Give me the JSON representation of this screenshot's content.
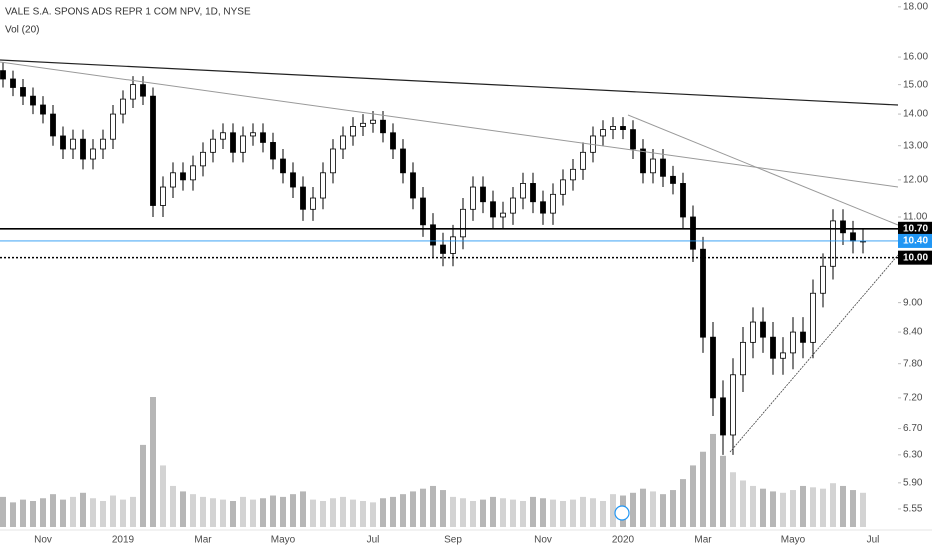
{
  "chart_data": {
    "type": "candlestick",
    "title": "VALE S.A. SPONS ADS REPR 1 COM NPV, 1D, NYSE",
    "indicator_label": "Vol (20)",
    "categories": [
      null,
      null,
      null,
      null,
      "Nov",
      null,
      null,
      null,
      null,
      null,
      null,
      null,
      "2019",
      null,
      null,
      null,
      null,
      null,
      null,
      null,
      "Mar",
      null,
      null,
      null,
      null,
      null,
      null,
      null,
      "Mayo",
      null,
      null,
      null,
      null,
      null,
      null,
      null,
      null,
      "Jul",
      null,
      null,
      null,
      null,
      null,
      null,
      null,
      "Sep",
      null,
      null,
      null,
      null,
      null,
      null,
      null,
      null,
      "Nov",
      null,
      null,
      null,
      null,
      null,
      null,
      null,
      "2020",
      null,
      null,
      null,
      null,
      null,
      null,
      null,
      "Mar",
      null,
      null,
      null,
      null,
      null,
      null,
      null,
      null,
      "Mayo",
      null,
      null,
      null,
      null,
      null,
      null,
      null,
      "Jul"
    ],
    "open": [
      15.5,
      15.2,
      14.9,
      14.6,
      14.3,
      14.0,
      13.3,
      12.9,
      13.2,
      12.6,
      12.9,
      13.2,
      14.0,
      14.5,
      15.0,
      14.6,
      11.3,
      11.8,
      12.2,
      12.0,
      12.4,
      12.8,
      13.2,
      13.4,
      12.8,
      13.3,
      13.4,
      13.1,
      12.6,
      12.2,
      11.8,
      11.2,
      11.5,
      12.2,
      12.9,
      13.3,
      13.6,
      13.7,
      13.8,
      13.4,
      12.9,
      12.2,
      11.5,
      10.8,
      10.3,
      10.1,
      10.5,
      11.2,
      11.8,
      11.4,
      11.0,
      11.1,
      11.5,
      11.9,
      11.4,
      11.1,
      11.6,
      12.0,
      12.3,
      12.8,
      13.3,
      13.5,
      13.6,
      13.5,
      12.9,
      12.2,
      12.6,
      12.1,
      11.9,
      11.0,
      10.2,
      8.3,
      7.2,
      6.6,
      7.6,
      8.2,
      8.6,
      8.3,
      7.9,
      8.0,
      8.4,
      8.2,
      9.2,
      9.8,
      10.9,
      10.6,
      10.4,
      null
    ],
    "high": [
      15.8,
      15.5,
      15.2,
      14.9,
      14.6,
      14.3,
      13.6,
      13.5,
      13.5,
      13.2,
      13.5,
      14.3,
      14.8,
      15.3,
      15.3,
      14.9,
      12.1,
      12.5,
      12.5,
      12.7,
      13.1,
      13.5,
      13.7,
      13.7,
      13.6,
      13.7,
      13.7,
      13.4,
      12.9,
      12.5,
      12.1,
      11.8,
      12.5,
      13.2,
      13.6,
      13.9,
      14.0,
      14.1,
      14.1,
      13.7,
      13.2,
      12.5,
      11.8,
      11.1,
      10.6,
      10.8,
      11.5,
      12.1,
      12.1,
      11.7,
      11.4,
      11.8,
      12.2,
      12.2,
      11.7,
      11.9,
      12.3,
      12.6,
      13.1,
      13.6,
      13.8,
      13.9,
      13.9,
      13.8,
      13.2,
      12.9,
      12.9,
      12.4,
      12.2,
      11.3,
      10.5,
      8.6,
      7.5,
      7.9,
      8.5,
      8.9,
      8.9,
      8.6,
      8.3,
      8.7,
      8.7,
      9.5,
      10.1,
      11.2,
      11.2,
      10.9,
      10.7,
      null
    ],
    "low": [
      14.9,
      14.6,
      14.3,
      14.0,
      13.7,
      13.0,
      12.6,
      12.6,
      12.3,
      12.3,
      12.6,
      12.9,
      13.7,
      14.2,
      14.3,
      11.0,
      11.0,
      11.5,
      11.7,
      11.7,
      12.1,
      12.5,
      12.9,
      12.5,
      12.5,
      13.0,
      12.8,
      12.3,
      11.9,
      11.5,
      10.9,
      10.9,
      11.2,
      11.9,
      12.6,
      13.0,
      13.3,
      13.4,
      13.1,
      12.6,
      11.9,
      11.2,
      10.5,
      10.0,
      9.8,
      9.8,
      10.2,
      10.9,
      11.1,
      10.7,
      10.7,
      10.8,
      11.2,
      11.1,
      10.8,
      10.8,
      11.3,
      11.7,
      12.0,
      12.5,
      13.0,
      13.2,
      13.2,
      12.6,
      11.9,
      11.9,
      11.8,
      11.6,
      10.7,
      9.9,
      8.0,
      6.9,
      6.3,
      6.3,
      7.3,
      7.9,
      8.0,
      7.6,
      7.6,
      7.7,
      7.9,
      7.9,
      8.9,
      9.5,
      10.3,
      10.1,
      10.1,
      null
    ],
    "close": [
      15.2,
      14.9,
      14.6,
      14.3,
      14.0,
      13.3,
      12.9,
      13.2,
      12.6,
      12.9,
      13.2,
      14.0,
      14.5,
      15.0,
      14.6,
      11.3,
      11.8,
      12.2,
      12.0,
      12.4,
      12.8,
      13.2,
      13.4,
      12.8,
      13.3,
      13.4,
      13.1,
      12.6,
      12.2,
      11.8,
      11.2,
      11.5,
      12.2,
      12.9,
      13.3,
      13.6,
      13.7,
      13.8,
      13.4,
      12.9,
      12.2,
      11.5,
      10.8,
      10.3,
      10.1,
      10.5,
      11.2,
      11.8,
      11.4,
      11.0,
      11.1,
      11.5,
      11.9,
      11.4,
      11.1,
      11.6,
      12.0,
      12.3,
      12.8,
      13.3,
      13.5,
      13.6,
      13.5,
      12.9,
      12.2,
      12.6,
      12.1,
      11.9,
      11.0,
      10.2,
      8.3,
      7.2,
      6.6,
      7.6,
      8.2,
      8.6,
      8.3,
      7.9,
      8.0,
      8.4,
      8.2,
      9.2,
      9.8,
      10.9,
      10.6,
      10.4,
      10.4,
      null
    ],
    "volume": [
      22,
      18,
      20,
      19,
      21,
      24,
      20,
      22,
      25,
      21,
      19,
      23,
      20,
      22,
      60,
      95,
      45,
      30,
      26,
      24,
      22,
      21,
      20,
      19,
      22,
      20,
      21,
      23,
      22,
      24,
      26,
      20,
      19,
      21,
      22,
      20,
      19,
      18,
      21,
      22,
      24,
      26,
      28,
      30,
      27,
      22,
      21,
      19,
      20,
      22,
      21,
      20,
      19,
      22,
      21,
      20,
      19,
      20,
      22,
      21,
      19,
      24,
      23,
      25,
      28,
      26,
      24,
      27,
      35,
      45,
      55,
      68,
      52,
      40,
      34,
      30,
      28,
      26,
      25,
      27,
      30,
      29,
      28,
      32,
      30,
      27,
      25,
      null
    ],
    "up_color": "#ffffff",
    "down_color": "#000000",
    "volume_color": "#9e9e9e",
    "log_scale": true,
    "ylim": [
      5.32,
      18.29
    ],
    "yticks": [
      {
        "value": 18,
        "label": "18.00"
      },
      {
        "value": 16,
        "label": "16.00"
      },
      {
        "value": 15,
        "label": "15.00"
      },
      {
        "value": 14,
        "label": "14.00"
      },
      {
        "value": 13,
        "label": "13.00"
      },
      {
        "value": 12,
        "label": "12.00"
      },
      {
        "value": 11,
        "label": "11.00"
      },
      {
        "value": 9,
        "label": "9.00"
      },
      {
        "value": 8.4,
        "label": "8.40"
      },
      {
        "value": 7.8,
        "label": "7.80"
      },
      {
        "value": 7.2,
        "label": "7.20"
      },
      {
        "value": 6.7,
        "label": "6.70"
      },
      {
        "value": 6.3,
        "label": "6.30"
      },
      {
        "value": 5.9,
        "label": "5.90"
      },
      {
        "value": 5.55,
        "label": "5.55"
      }
    ],
    "price_lines": [
      {
        "value": 10.7,
        "label": "10.70",
        "color": "#000000",
        "style": "solid"
      },
      {
        "value": 10.4,
        "label": "10.40",
        "color": "#2196f3",
        "style": "solid"
      },
      {
        "value": 10.0,
        "label": "10.00",
        "color": "#000000",
        "style": "dotted"
      }
    ]
  }
}
